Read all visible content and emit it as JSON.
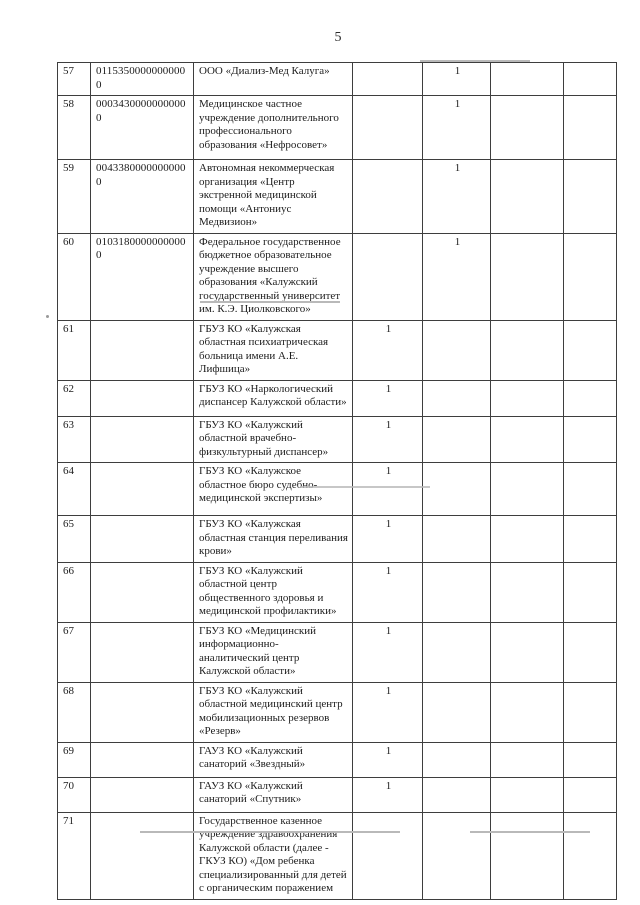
{
  "page": {
    "number": "5"
  },
  "table": {
    "rows": [
      {
        "num": "57",
        "code": "01153500000000000",
        "name": "ООО «Диализ-Мед Калуга»",
        "marks": [
          "",
          "1",
          "",
          ""
        ]
      },
      {
        "num": "58",
        "code": "00034300000000000",
        "name": "Медицинское частное учреждение дополнительного профессионального образования «Нефросовет»",
        "marks": [
          "",
          "1",
          "",
          ""
        ]
      },
      {
        "num": "59",
        "code": "00433800000000000",
        "name": "Автономная некоммерческая организация «Центр экстренной медицинской помощи «Антониус Медвизион»",
        "marks": [
          "",
          "1",
          "",
          ""
        ]
      },
      {
        "num": "60",
        "code": "01031800000000000",
        "name": "Федеральное государственное бюджетное образовательное учреждение высшего образования «Калужский государственный университет им. К.Э. Циолковского»",
        "marks": [
          "",
          "1",
          "",
          ""
        ]
      },
      {
        "num": "61",
        "code": "",
        "name": "ГБУЗ КО «Калужская областная психиатрическая больница имени А.Е. Лифшица»",
        "marks": [
          "1",
          "",
          "",
          ""
        ]
      },
      {
        "num": "62",
        "code": "",
        "name": "ГБУЗ КО «Наркологический диспансер Калужской области»",
        "marks": [
          "1",
          "",
          "",
          ""
        ]
      },
      {
        "num": "63",
        "code": "",
        "name": "ГБУЗ КО «Калужский областной врачебно-физкультурный диспансер»",
        "marks": [
          "1",
          "",
          "",
          ""
        ]
      },
      {
        "num": "64",
        "code": "",
        "name": "ГБУЗ КО «Калужское областное бюро судебно-медицинской экспертизы»",
        "marks": [
          "1",
          "",
          "",
          ""
        ]
      },
      {
        "num": "65",
        "code": "",
        "name": "ГБУЗ КО «Калужская областная станция переливания крови»",
        "marks": [
          "1",
          "",
          "",
          ""
        ]
      },
      {
        "num": "66",
        "code": "",
        "name": "ГБУЗ КО «Калужский областной центр общественного здоровья и медицинской профилактики»",
        "marks": [
          "1",
          "",
          "",
          ""
        ]
      },
      {
        "num": "67",
        "code": "",
        "name": "ГБУЗ КО «Медицинский информационно-аналитический центр Калужской области»",
        "marks": [
          "1",
          "",
          "",
          ""
        ]
      },
      {
        "num": "68",
        "code": "",
        "name": "ГБУЗ КО «Калужский областной медицинский центр мобилизационных резервов «Резерв»",
        "marks": [
          "1",
          "",
          "",
          ""
        ]
      },
      {
        "num": "69",
        "code": "",
        "name": "ГАУЗ КО «Калужский санаторий «Звездный»",
        "marks": [
          "1",
          "",
          "",
          ""
        ]
      },
      {
        "num": "70",
        "code": "",
        "name": "ГАУЗ КО «Калужский санаторий «Спутник»",
        "marks": [
          "1",
          "",
          "",
          ""
        ]
      },
      {
        "num": "71",
        "code": "",
        "name": "Государственное казенное учреждение здравоохранения Калужской области (далее - ГКУЗ КО) «Дом ребенка специализированный для детей с органическим поражением",
        "marks": [
          "",
          "",
          "",
          ""
        ]
      }
    ]
  }
}
